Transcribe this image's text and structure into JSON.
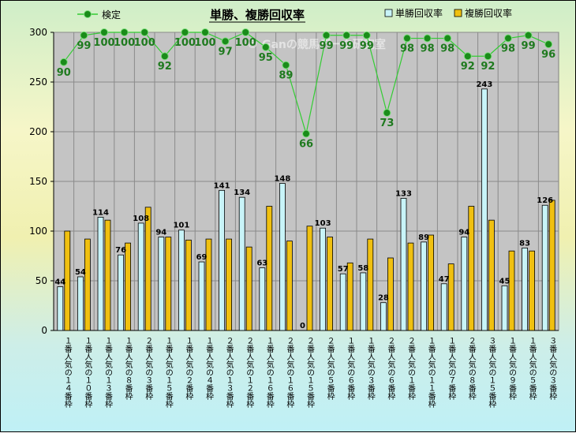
{
  "chart_data": {
    "type": "bar",
    "title": "単勝、複勝回収率",
    "watermark": "© Ganの競馬データ研究室",
    "ylim": [
      0,
      300
    ],
    "yticks": [
      0,
      50,
      100,
      150,
      200,
      250,
      300
    ],
    "grid": true,
    "legend": "top",
    "categories": [
      "１番人気の１４番枠",
      "１番人気の１０番枠",
      "１番人気の１３番枠",
      "１番人気の８番枠",
      "２番人気の３番枠",
      "１番人気の１５番枠",
      "１番人気の２番枠",
      "１番人気の４番枠",
      "２番人気の１３番枠",
      "２番人気の１２番枠",
      "１番人気の１６番枠",
      "２番人気の１６番枠",
      "２番人気の１５番枠",
      "２番人気の５番枠",
      "１番人気の６番枠",
      "１番人気の３番枠",
      "２番人気の６番枠",
      "２番人気の１番枠",
      "１番人気の１１番枠",
      "１番人気の７番枠",
      "２番人気の８番枠",
      "３番人気の１５番枠",
      "１番人気の９番枠",
      "１番人気の５番枠",
      "３番人気の３番枠"
    ],
    "series": [
      {
        "name": "単勝回収率",
        "type": "bar",
        "color": "#c8f4f8",
        "values": [
          44,
          54,
          114,
          76,
          108,
          94,
          101,
          69,
          141,
          134,
          63,
          148,
          0,
          103,
          57,
          58,
          28,
          133,
          89,
          47,
          94,
          243,
          45,
          83,
          126
        ],
        "labels": [
          "44",
          "54",
          "114",
          "76",
          "108",
          "94",
          "101",
          "69",
          "141",
          "134",
          "63",
          "148",
          "0",
          "103",
          "57",
          "58",
          "28",
          "133",
          "89",
          "47",
          "94",
          "243",
          "45",
          "83",
          "126"
        ]
      },
      {
        "name": "複勝回収率",
        "type": "bar",
        "color": "#f0c010",
        "values": [
          100,
          92,
          111,
          88,
          124,
          94,
          91,
          92,
          92,
          84,
          125,
          90,
          105,
          94,
          68,
          92,
          73,
          88,
          96,
          67,
          125,
          111,
          80,
          80,
          131
        ]
      },
      {
        "name": "検定",
        "type": "line",
        "color": "#33cc33",
        "marker": "#1a8c1a",
        "values": [
          90,
          99,
          100,
          100,
          100,
          92,
          100,
          100,
          97,
          100,
          95,
          89,
          66,
          99,
          99,
          99,
          73,
          98,
          98,
          98,
          92,
          92,
          98,
          99,
          96
        ],
        "labels": [
          "90",
          "99",
          "100",
          "100",
          "100",
          "92",
          "100",
          "100",
          "97",
          "100",
          "95",
          "89",
          "66",
          "99",
          "99",
          "99",
          "73",
          "98",
          "98",
          "98",
          "92",
          "92",
          "98",
          "99",
          "96"
        ]
      }
    ]
  }
}
